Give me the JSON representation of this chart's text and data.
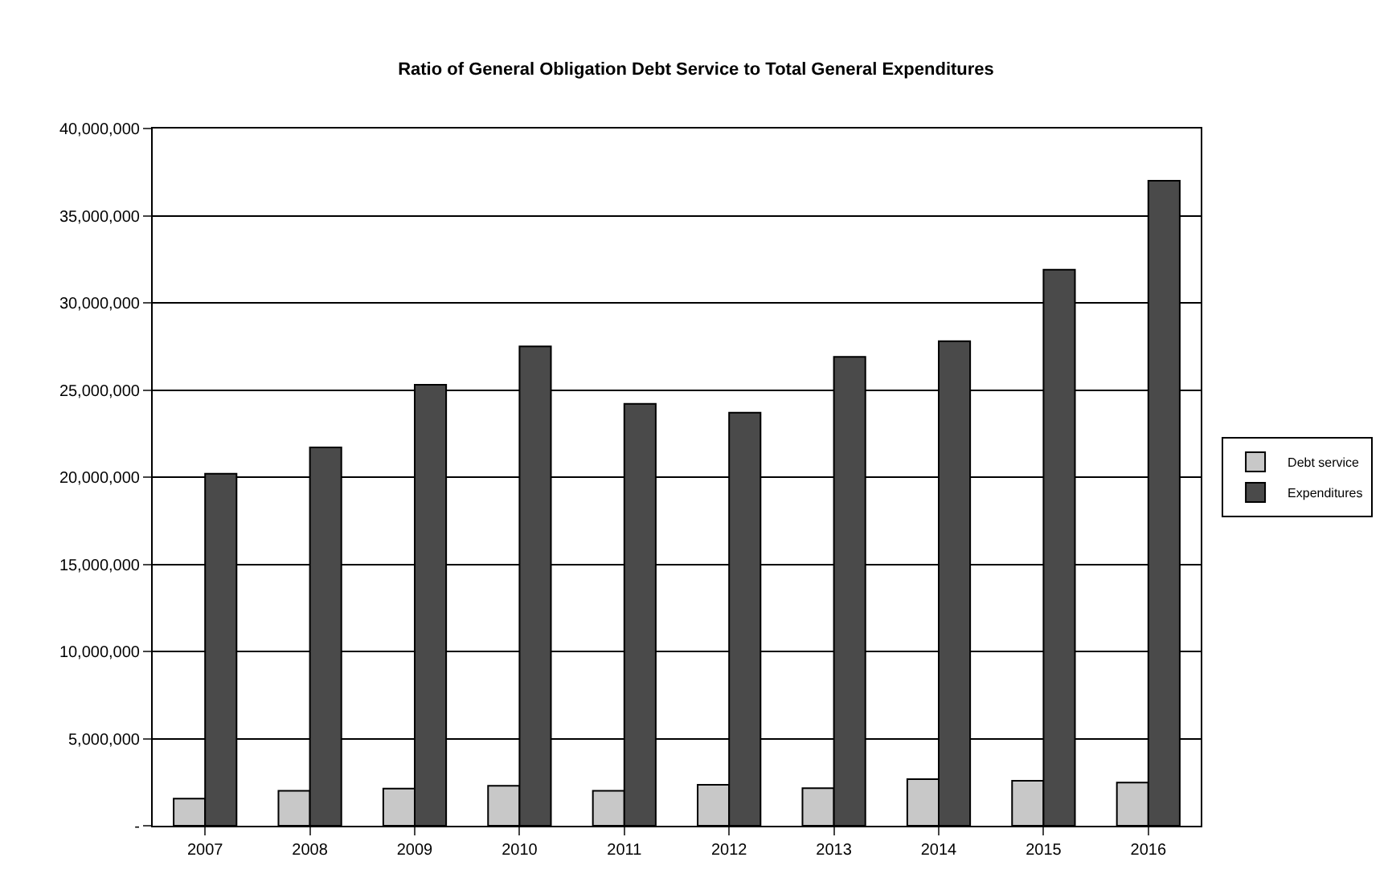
{
  "chart_data": {
    "type": "bar",
    "title": "Ratio of General Obligation Debt Service to Total General Expenditures",
    "categories": [
      "2007",
      "2008",
      "2009",
      "2010",
      "2011",
      "2012",
      "2013",
      "2014",
      "2015",
      "2016"
    ],
    "series": [
      {
        "name": "Debt service",
        "color": "#c8c8c8",
        "values": [
          1550000,
          2000000,
          2130000,
          2290000,
          2000000,
          2350000,
          2150000,
          2670000,
          2580000,
          2480000
        ]
      },
      {
        "name": "Expenditures",
        "color": "#4a4a4a",
        "values": [
          20200000,
          21700000,
          25300000,
          27500000,
          24200000,
          23700000,
          26900000,
          27800000,
          31900000,
          37000000
        ]
      }
    ],
    "ylim": [
      0,
      40000000
    ],
    "yticks": [
      {
        "value": 0,
        "label": "-"
      },
      {
        "value": 5000000,
        "label": "5,000,000"
      },
      {
        "value": 10000000,
        "label": "10,000,000"
      },
      {
        "value": 15000000,
        "label": "15,000,000"
      },
      {
        "value": 20000000,
        "label": "20,000,000"
      },
      {
        "value": 25000000,
        "label": "25,000,000"
      },
      {
        "value": 30000000,
        "label": "30,000,000"
      },
      {
        "value": 35000000,
        "label": "35,000,000"
      },
      {
        "value": 40000000,
        "label": "40,000,000"
      }
    ],
    "grid": "y",
    "legend": "right"
  }
}
